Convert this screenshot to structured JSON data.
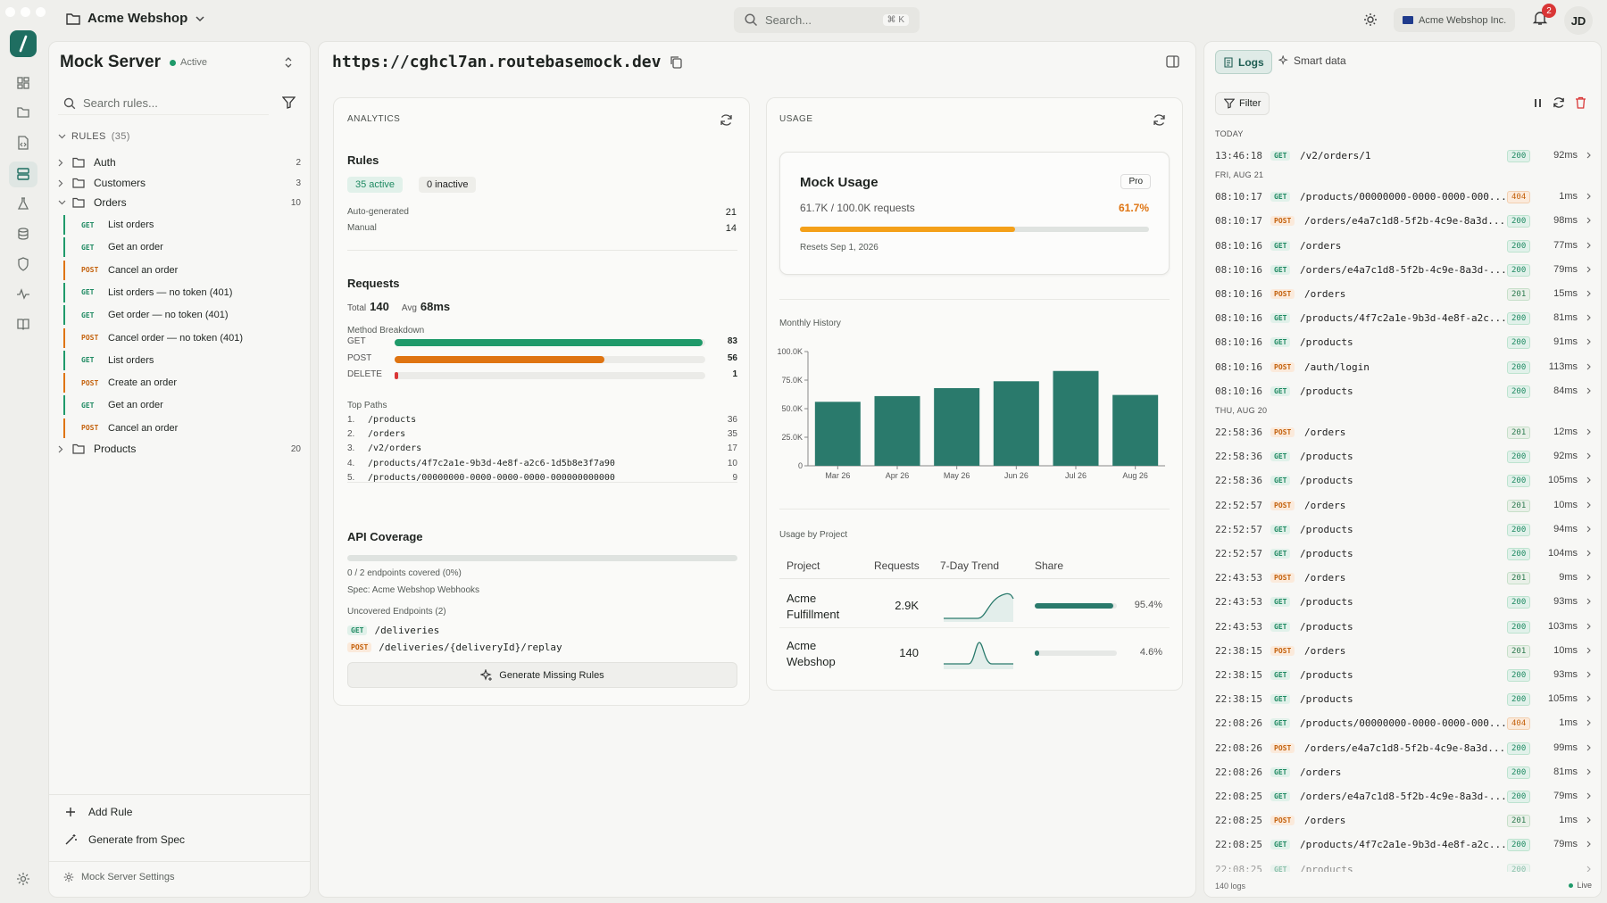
{
  "topbar": {
    "project": "Acme Webshop",
    "search_placeholder": "Search...",
    "search_shortcut": "⌘ K",
    "org": "Acme Webshop Inc.",
    "notifications": "2",
    "avatar": "JD"
  },
  "rules_panel": {
    "title": "Mock Server",
    "status": "Active",
    "search_placeholder": "Search rules...",
    "rules_header": "RULES",
    "rules_count": "(35)",
    "folders": [
      {
        "name": "Auth",
        "count": "2"
      },
      {
        "name": "Customers",
        "count": "3"
      },
      {
        "name": "Orders",
        "count": "10"
      }
    ],
    "order_rules": [
      {
        "method": "GET",
        "name": "List orders"
      },
      {
        "method": "GET",
        "name": "Get an order"
      },
      {
        "method": "POST",
        "name": "Cancel an order"
      },
      {
        "method": "GET",
        "name": "List orders — no token (401)"
      },
      {
        "method": "GET",
        "name": "Get order — no token (401)"
      },
      {
        "method": "POST",
        "name": "Cancel order — no token (401)"
      },
      {
        "method": "GET",
        "name": "List orders"
      },
      {
        "method": "POST",
        "name": "Create an order"
      },
      {
        "method": "GET",
        "name": "Get an order"
      },
      {
        "method": "POST",
        "name": "Cancel an order"
      }
    ],
    "products_folder": {
      "name": "Products",
      "count": "20"
    },
    "add_rule": "Add Rule",
    "generate_from_spec": "Generate from Spec",
    "settings": "Mock Server Settings"
  },
  "main": {
    "url": "https://cghcl7an.routebasemock.dev",
    "analytics": {
      "header": "ANALYTICS",
      "rules_title": "Rules",
      "active_badge": "35 active",
      "inactive_badge": "0 inactive",
      "auto_label": "Auto-generated",
      "auto_value": "21",
      "manual_label": "Manual",
      "manual_value": "14",
      "requests_title": "Requests",
      "total_label": "Total",
      "total_value": "140",
      "avg_label": "Avg",
      "avg_value": "68ms",
      "breakdown_title": "Method Breakdown",
      "breakdown": [
        {
          "method": "GET",
          "value": "83",
          "fraction": 0.99,
          "color": "#1f9a6a"
        },
        {
          "method": "POST",
          "value": "56",
          "fraction": 0.675,
          "color": "#df7411"
        },
        {
          "method": "DELETE",
          "value": "1",
          "fraction": 0.012,
          "color": "#d93636"
        }
      ],
      "top_paths_title": "Top Paths",
      "top_paths": [
        {
          "rank": "1.",
          "path": "/products",
          "count": "36"
        },
        {
          "rank": "2.",
          "path": "/orders",
          "count": "35"
        },
        {
          "rank": "3.",
          "path": "/v2/orders",
          "count": "17"
        },
        {
          "rank": "4.",
          "path": "/products/4f7c2a1e-9b3d-4e8f-a2c6-1d5b8e3f7a90",
          "count": "10"
        },
        {
          "rank": "5.",
          "path": "/products/00000000-0000-0000-0000-000000000000",
          "count": "9"
        }
      ],
      "coverage_title": "API Coverage",
      "coverage_fraction": 0,
      "coverage_text": "0 / 2 endpoints covered (0%)",
      "coverage_spec": "Spec: Acme Webshop Webhooks",
      "uncovered_title": "Uncovered Endpoints (2)",
      "uncovered": [
        {
          "method": "GET",
          "path": "/deliveries"
        },
        {
          "method": "POST",
          "path": "/deliveries/{deliveryId}/replay"
        }
      ],
      "generate_button": "Generate Missing Rules"
    },
    "usage": {
      "header": "USAGE",
      "mock_usage_title": "Mock Usage",
      "plan": "Pro",
      "requests_text": "61.7K / 100.0K requests",
      "percent": "61.7%",
      "fraction": 0.617,
      "resets": "Resets Sep 1, 2026",
      "history_title": "Monthly History",
      "by_project_title": "Usage by Project",
      "table_headers": [
        "Project",
        "Requests",
        "7-Day Trend",
        "Share"
      ],
      "projects": [
        {
          "name": "Acme Fulfillment",
          "requests": "2.9K",
          "share": "95.4%",
          "share_fraction": 0.954
        },
        {
          "name": "Acme Webshop",
          "requests": "140",
          "share": "4.6%",
          "share_fraction": 0.046
        }
      ]
    }
  },
  "chart_data": {
    "type": "bar",
    "categories": [
      "Mar 26",
      "Apr 26",
      "May 26",
      "Jun 26",
      "Jul 26",
      "Aug 26"
    ],
    "values": [
      56000,
      61000,
      68000,
      74000,
      83000,
      62000
    ],
    "ylim": [
      0,
      100000
    ],
    "yticks": [
      "0",
      "25.0K",
      "50.0K",
      "75.0K",
      "100.0K"
    ],
    "ytick_values": [
      0,
      25000,
      50000,
      75000,
      100000
    ],
    "color": "#2a7a6c",
    "grid": false
  },
  "logs": {
    "tab_logs": "Logs",
    "tab_smart": "Smart data",
    "filter": "Filter",
    "footer_count": "140 logs",
    "live": "Live",
    "groups": [
      {
        "label": "TODAY",
        "entries": [
          {
            "time": "13:46:18",
            "method": "GET",
            "path": "/v2/orders/1",
            "status": "200",
            "dur": "92ms"
          }
        ]
      },
      {
        "label": "FRI, AUG 21",
        "entries": [
          {
            "time": "08:10:17",
            "method": "GET",
            "path": "/products/00000000-0000-0000-000...",
            "status": "404",
            "dur": "1ms"
          },
          {
            "time": "08:10:17",
            "method": "POST",
            "path": "/orders/e4a7c1d8-5f2b-4c9e-8a3d...",
            "status": "200",
            "dur": "98ms"
          },
          {
            "time": "08:10:16",
            "method": "GET",
            "path": "/orders",
            "status": "200",
            "dur": "77ms"
          },
          {
            "time": "08:10:16",
            "method": "GET",
            "path": "/orders/e4a7c1d8-5f2b-4c9e-8a3d-...",
            "status": "200",
            "dur": "79ms"
          },
          {
            "time": "08:10:16",
            "method": "POST",
            "path": "/orders",
            "status": "201",
            "dur": "15ms"
          },
          {
            "time": "08:10:16",
            "method": "GET",
            "path": "/products/4f7c2a1e-9b3d-4e8f-a2c...",
            "status": "200",
            "dur": "81ms"
          },
          {
            "time": "08:10:16",
            "method": "GET",
            "path": "/products",
            "status": "200",
            "dur": "91ms"
          },
          {
            "time": "08:10:16",
            "method": "POST",
            "path": "/auth/login",
            "status": "200",
            "dur": "113ms"
          },
          {
            "time": "08:10:16",
            "method": "GET",
            "path": "/products",
            "status": "200",
            "dur": "84ms"
          }
        ]
      },
      {
        "label": "THU, AUG 20",
        "entries": [
          {
            "time": "22:58:36",
            "method": "POST",
            "path": "/orders",
            "status": "201",
            "dur": "12ms"
          },
          {
            "time": "22:58:36",
            "method": "GET",
            "path": "/products",
            "status": "200",
            "dur": "92ms"
          },
          {
            "time": "22:58:36",
            "method": "GET",
            "path": "/products",
            "status": "200",
            "dur": "105ms"
          },
          {
            "time": "22:52:57",
            "method": "POST",
            "path": "/orders",
            "status": "201",
            "dur": "10ms"
          },
          {
            "time": "22:52:57",
            "method": "GET",
            "path": "/products",
            "status": "200",
            "dur": "94ms"
          },
          {
            "time": "22:52:57",
            "method": "GET",
            "path": "/products",
            "status": "200",
            "dur": "104ms"
          },
          {
            "time": "22:43:53",
            "method": "POST",
            "path": "/orders",
            "status": "201",
            "dur": "9ms"
          },
          {
            "time": "22:43:53",
            "method": "GET",
            "path": "/products",
            "status": "200",
            "dur": "93ms"
          },
          {
            "time": "22:43:53",
            "method": "GET",
            "path": "/products",
            "status": "200",
            "dur": "103ms"
          },
          {
            "time": "22:38:15",
            "method": "POST",
            "path": "/orders",
            "status": "201",
            "dur": "10ms"
          },
          {
            "time": "22:38:15",
            "method": "GET",
            "path": "/products",
            "status": "200",
            "dur": "93ms"
          },
          {
            "time": "22:38:15",
            "method": "GET",
            "path": "/products",
            "status": "200",
            "dur": "105ms"
          },
          {
            "time": "22:08:26",
            "method": "GET",
            "path": "/products/00000000-0000-0000-000...",
            "status": "404",
            "dur": "1ms"
          },
          {
            "time": "22:08:26",
            "method": "POST",
            "path": "/orders/e4a7c1d8-5f2b-4c9e-8a3d...",
            "status": "200",
            "dur": "99ms"
          },
          {
            "time": "22:08:26",
            "method": "GET",
            "path": "/orders",
            "status": "200",
            "dur": "81ms"
          },
          {
            "time": "22:08:25",
            "method": "GET",
            "path": "/orders/e4a7c1d8-5f2b-4c9e-8a3d-...",
            "status": "200",
            "dur": "79ms"
          },
          {
            "time": "22:08:25",
            "method": "POST",
            "path": "/orders",
            "status": "201",
            "dur": "1ms"
          },
          {
            "time": "22:08:25",
            "method": "GET",
            "path": "/products/4f7c2a1e-9b3d-4e8f-a2c...",
            "status": "200",
            "dur": "79ms"
          },
          {
            "time": "22:08:25",
            "method": "GET",
            "path": "/products",
            "status": "200",
            "dur": "",
            "cut": true
          }
        ]
      }
    ]
  }
}
